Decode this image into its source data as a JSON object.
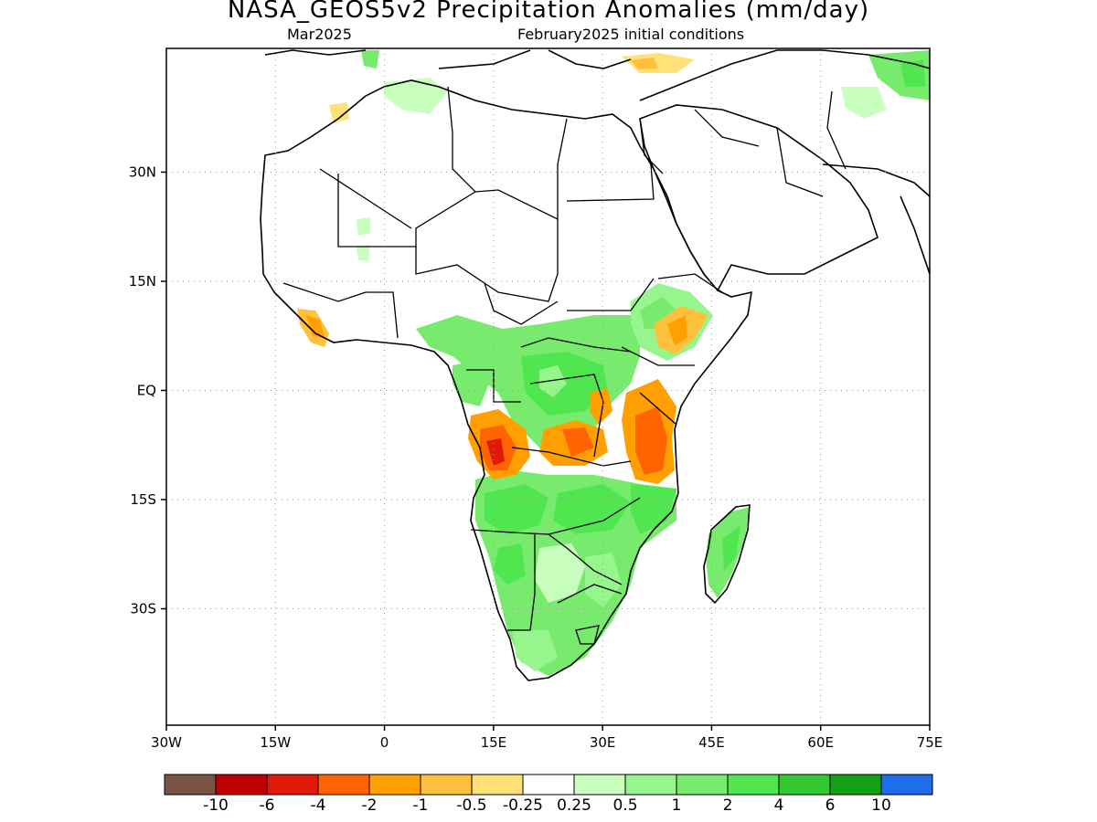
{
  "title": "NASA_GEOS5v2 Precipitation Anomalies (mm/day)",
  "subtitle_left": "Mar2025",
  "subtitle_right": "February2025 initial conditions",
  "map": {
    "lon_range": [
      -30,
      75
    ],
    "lat_range": [
      -46,
      47
    ],
    "lon_ticks": [
      {
        "value": -30,
        "label": "30W"
      },
      {
        "value": -15,
        "label": "15W"
      },
      {
        "value": 0,
        "label": "0"
      },
      {
        "value": 15,
        "label": "15E"
      },
      {
        "value": 30,
        "label": "30E"
      },
      {
        "value": 45,
        "label": "45E"
      },
      {
        "value": 60,
        "label": "60E"
      },
      {
        "value": 75,
        "label": "75E"
      }
    ],
    "lat_ticks": [
      {
        "value": 30,
        "label": "30N"
      },
      {
        "value": 15,
        "label": "15N"
      },
      {
        "value": 0,
        "label": "EQ"
      },
      {
        "value": -15,
        "label": "15S"
      },
      {
        "value": -30,
        "label": "30S"
      }
    ],
    "gridlines": "dotted"
  },
  "colorbar": {
    "colors": [
      "#7a5246",
      "#c00000",
      "#e01a0a",
      "#ff6400",
      "#ffa000",
      "#ffc03c",
      "#ffe178",
      "#ffffff",
      "#c8ffbe",
      "#96f58c",
      "#78eb6e",
      "#50e650",
      "#32c832",
      "#14a014",
      "#1e6eeb"
    ],
    "labels": [
      "-10",
      "-6",
      "-4",
      "-2",
      "-1",
      "-0.5",
      "-0.25",
      "0.25",
      "0.5",
      "1",
      "2",
      "4",
      "6",
      "10"
    ]
  },
  "anomaly_regions": [
    {
      "region": "Central Africa / Congo Basin",
      "lon": 24,
      "lat": 1,
      "value": 1.5
    },
    {
      "region": "Southern Africa",
      "lon": 22,
      "lat": -17,
      "value": 1.5
    },
    {
      "region": "Angola coast",
      "lon": 15,
      "lat": -9,
      "value": -2
    },
    {
      "region": "East Africa / Tanzania",
      "lon": 36,
      "lat": -6,
      "value": -1
    },
    {
      "region": "Ethiopia",
      "lon": 39,
      "lat": 8,
      "value": -0.5
    },
    {
      "region": "Madagascar",
      "lon": 47,
      "lat": -19,
      "value": 1
    }
  ]
}
